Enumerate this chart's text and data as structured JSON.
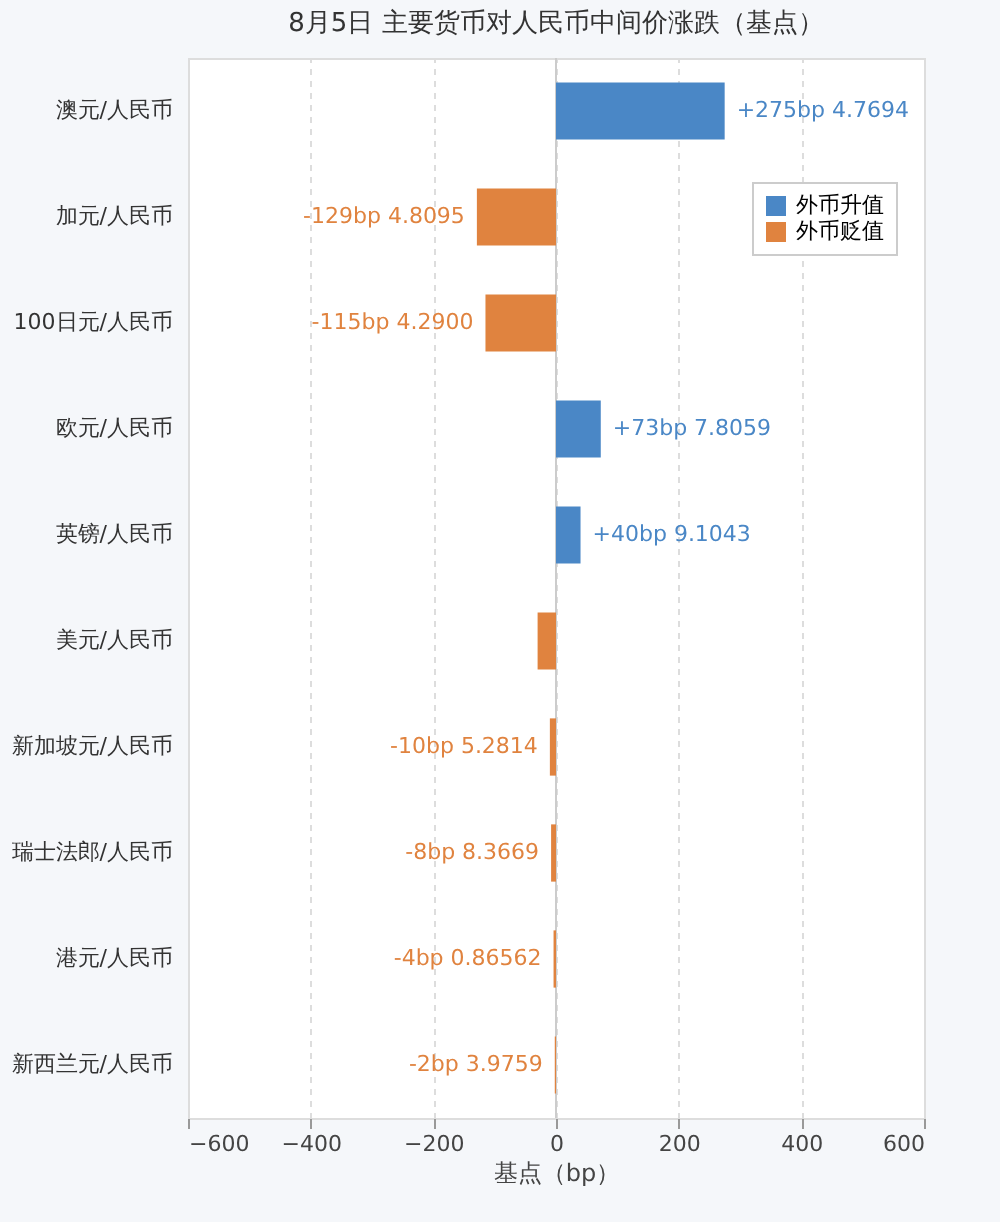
{
  "chart_data": {
    "type": "bar",
    "orientation": "horizontal",
    "title": "8月5日 主要货币对人民币中间价涨跌（基点）",
    "xlabel": "基点（bp）",
    "categories": [
      "澳元/人民币",
      "加元/人民币",
      "100日元/人民币",
      "欧元/人民币",
      "英镑/人民币",
      "美元/人民币",
      "新加坡元/人民币",
      "瑞士法郎/人民币",
      "港元/人民币",
      "新西兰元/人民币"
    ],
    "series": [
      {
        "name": "外币升值",
        "color": "#4a87c6",
        "values": [
          275,
          null,
          null,
          73,
          40,
          null,
          null,
          null,
          null,
          null
        ]
      },
      {
        "name": "外币贬值",
        "color": "#e0833f",
        "values": [
          null,
          -129,
          -115,
          null,
          null,
          -30,
          -10,
          -8,
          -4,
          -2
        ]
      }
    ],
    "value_labels": [
      "+275bp  4.7694",
      "-129bp  4.8095",
      "-115bp  4.2900",
      "+73bp  7.8059",
      "+40bp  9.1043",
      null,
      "-10bp  5.2814",
      "-8bp  8.3669",
      "-4bp  0.86562",
      "-2bp  3.9759"
    ],
    "xlim": [
      -600,
      600
    ],
    "xticks": [
      -600,
      -400,
      -200,
      0,
      200,
      400,
      600
    ],
    "grid": "x",
    "legend": "top right"
  }
}
